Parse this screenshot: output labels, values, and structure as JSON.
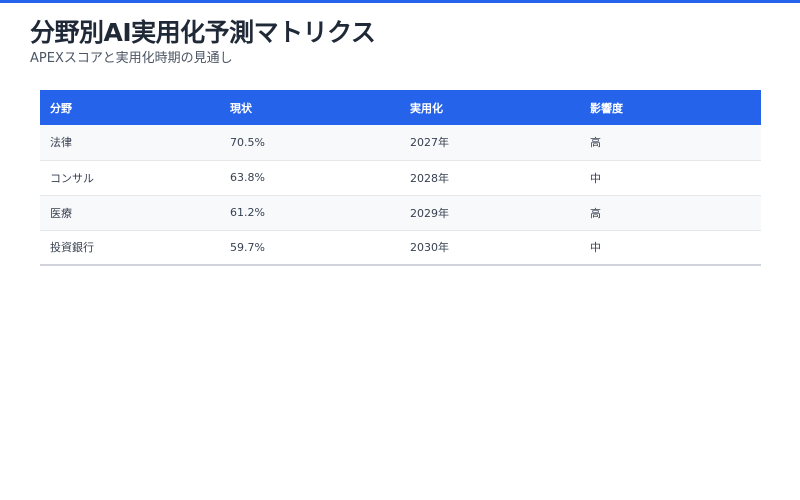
{
  "header": {
    "title": "分野別AI実用化予測マトリクス",
    "subtitle": "APEXスコアと実用化時期の見通し"
  },
  "table": {
    "columns": [
      "分野",
      "現状",
      "実用化",
      "影響度"
    ],
    "rows": [
      [
        "法律",
        "70.5%",
        "2027年",
        "高"
      ],
      [
        "コンサル",
        "63.8%",
        "2028年",
        "中"
      ],
      [
        "医療",
        "61.2%",
        "2029年",
        "高"
      ],
      [
        "投資銀行",
        "59.7%",
        "2030年",
        "中"
      ]
    ]
  },
  "colors": {
    "accent": "#2563eb",
    "title": "#1f2937",
    "row_alt": "#f8f9fb"
  }
}
